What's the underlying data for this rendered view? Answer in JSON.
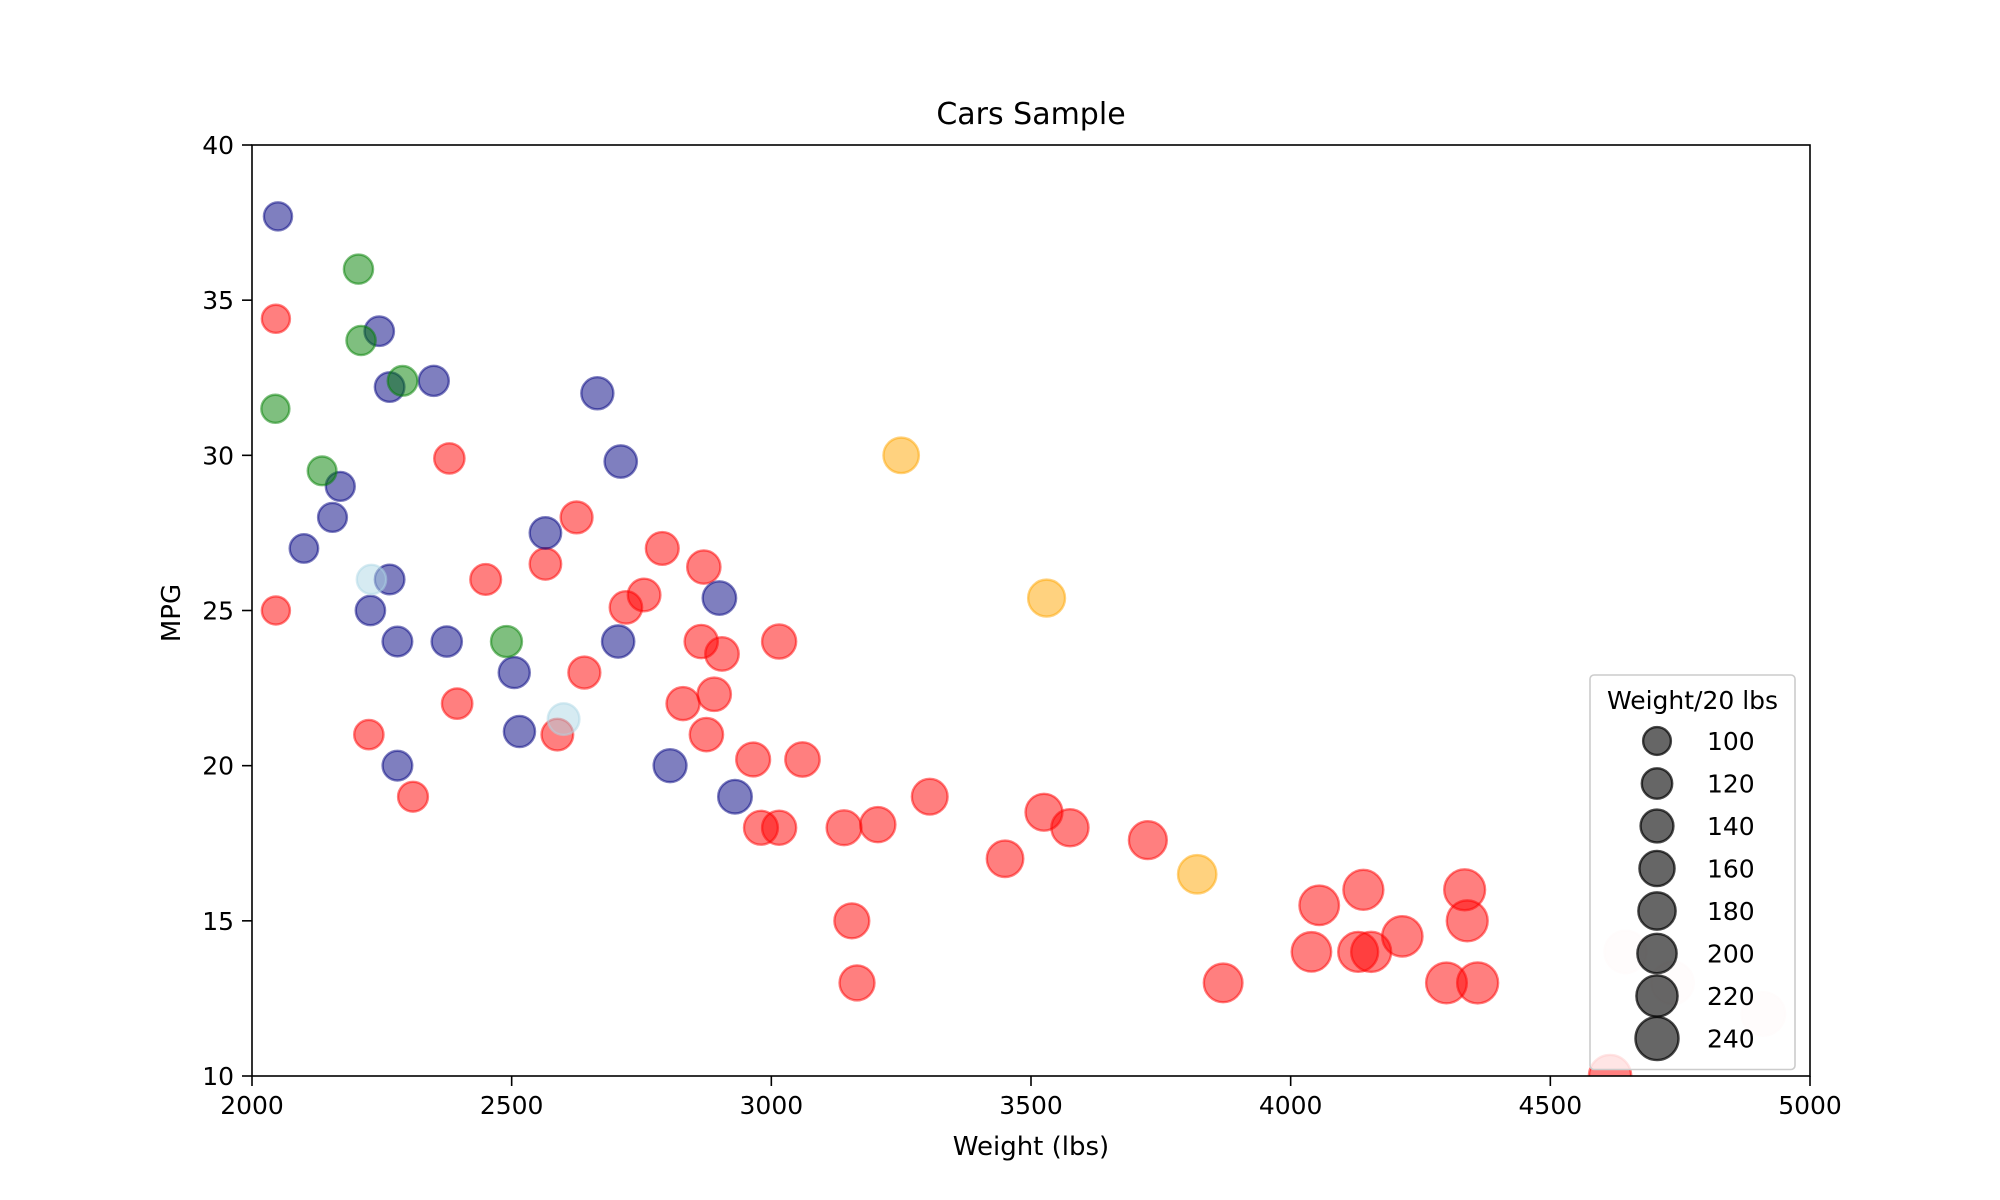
{
  "chart_data": {
    "type": "scatter",
    "title": "Cars Sample",
    "xlabel": "Weight (lbs)",
    "ylabel": "MPG",
    "xlim": [
      2000,
      5000
    ],
    "ylim": [
      10,
      40
    ],
    "x_ticks": [
      "2000",
      "2500",
      "3000",
      "3500",
      "4000",
      "4500",
      "5000"
    ],
    "y_ticks": [
      "10",
      "15",
      "20",
      "25",
      "30",
      "35",
      "40"
    ],
    "grid": false,
    "size_encoding": "Weight / 20",
    "point_alpha": 0.5,
    "colors": {
      "red": "#ff0000",
      "navy": "#000080",
      "green": "#008000",
      "orange": "#ffa500",
      "lightblue": "#add8e6",
      "mistyrose": "#ffe4e1"
    },
    "legend": {
      "title": "Weight/20 lbs",
      "location": "lower right",
      "entries": [
        "100",
        "120",
        "140",
        "160",
        "180",
        "200",
        "220",
        "240"
      ],
      "sizes": [
        100,
        120,
        140,
        160,
        180,
        200,
        220,
        240
      ],
      "marker_color": "#000000",
      "marker_alpha": 0.6
    },
    "series": [
      {
        "color": "red",
        "x": [
          2046,
          2046,
          2225,
          2310,
          2380,
          2395,
          2450,
          2565,
          2588,
          2625,
          2640,
          2720,
          2755,
          2790,
          2830,
          2865,
          2870,
          2875,
          2890,
          2905,
          2965,
          2980,
          3015,
          3015,
          3060,
          3140,
          3155,
          3165,
          3205,
          3305,
          3450,
          3525,
          3575,
          3725,
          3870,
          4040,
          4055,
          4130,
          4140,
          4155,
          4215,
          4300,
          4335,
          4340,
          4360,
          4615
        ],
        "y": [
          34.4,
          25,
          21,
          19,
          29.9,
          22,
          26,
          26.5,
          21,
          28,
          23,
          25.1,
          25.5,
          27,
          22,
          24,
          26.4,
          21,
          22.3,
          23.6,
          20.2,
          18,
          24,
          18,
          20.2,
          18,
          15,
          13,
          18.1,
          19,
          17,
          18.5,
          18,
          17.6,
          13,
          14,
          15.5,
          14,
          16,
          14,
          14.5,
          13,
          16,
          15,
          13,
          10
        ]
      },
      {
        "color": "navy",
        "x": [
          2050,
          2100,
          2155,
          2170,
          2228,
          2245,
          2265,
          2265,
          2280,
          2280,
          2350,
          2375,
          2505,
          2515,
          2565,
          2665,
          2705,
          2710,
          2805,
          2900,
          2930
        ],
        "y": [
          37.7,
          27,
          28,
          29,
          25,
          34,
          32.2,
          26,
          24,
          20,
          32.4,
          24,
          23,
          21.1,
          27.5,
          32,
          24,
          29.8,
          20,
          25.4,
          19
        ]
      },
      {
        "color": "green",
        "x": [
          2045,
          2135,
          2205,
          2210,
          2290,
          2490
        ],
        "y": [
          31.5,
          29.5,
          36,
          33.7,
          32.4,
          24
        ]
      },
      {
        "color": "orange",
        "x": [
          3250,
          3530,
          3820
        ],
        "y": [
          30,
          25.4,
          16.5
        ]
      },
      {
        "color": "lightblue",
        "x": [
          2230,
          2600
        ],
        "y": [
          26,
          21.5
        ]
      },
      {
        "color": "mistyrose",
        "x": [
          4645,
          4735,
          4910
        ],
        "y": [
          14,
          13,
          12
        ]
      }
    ]
  }
}
